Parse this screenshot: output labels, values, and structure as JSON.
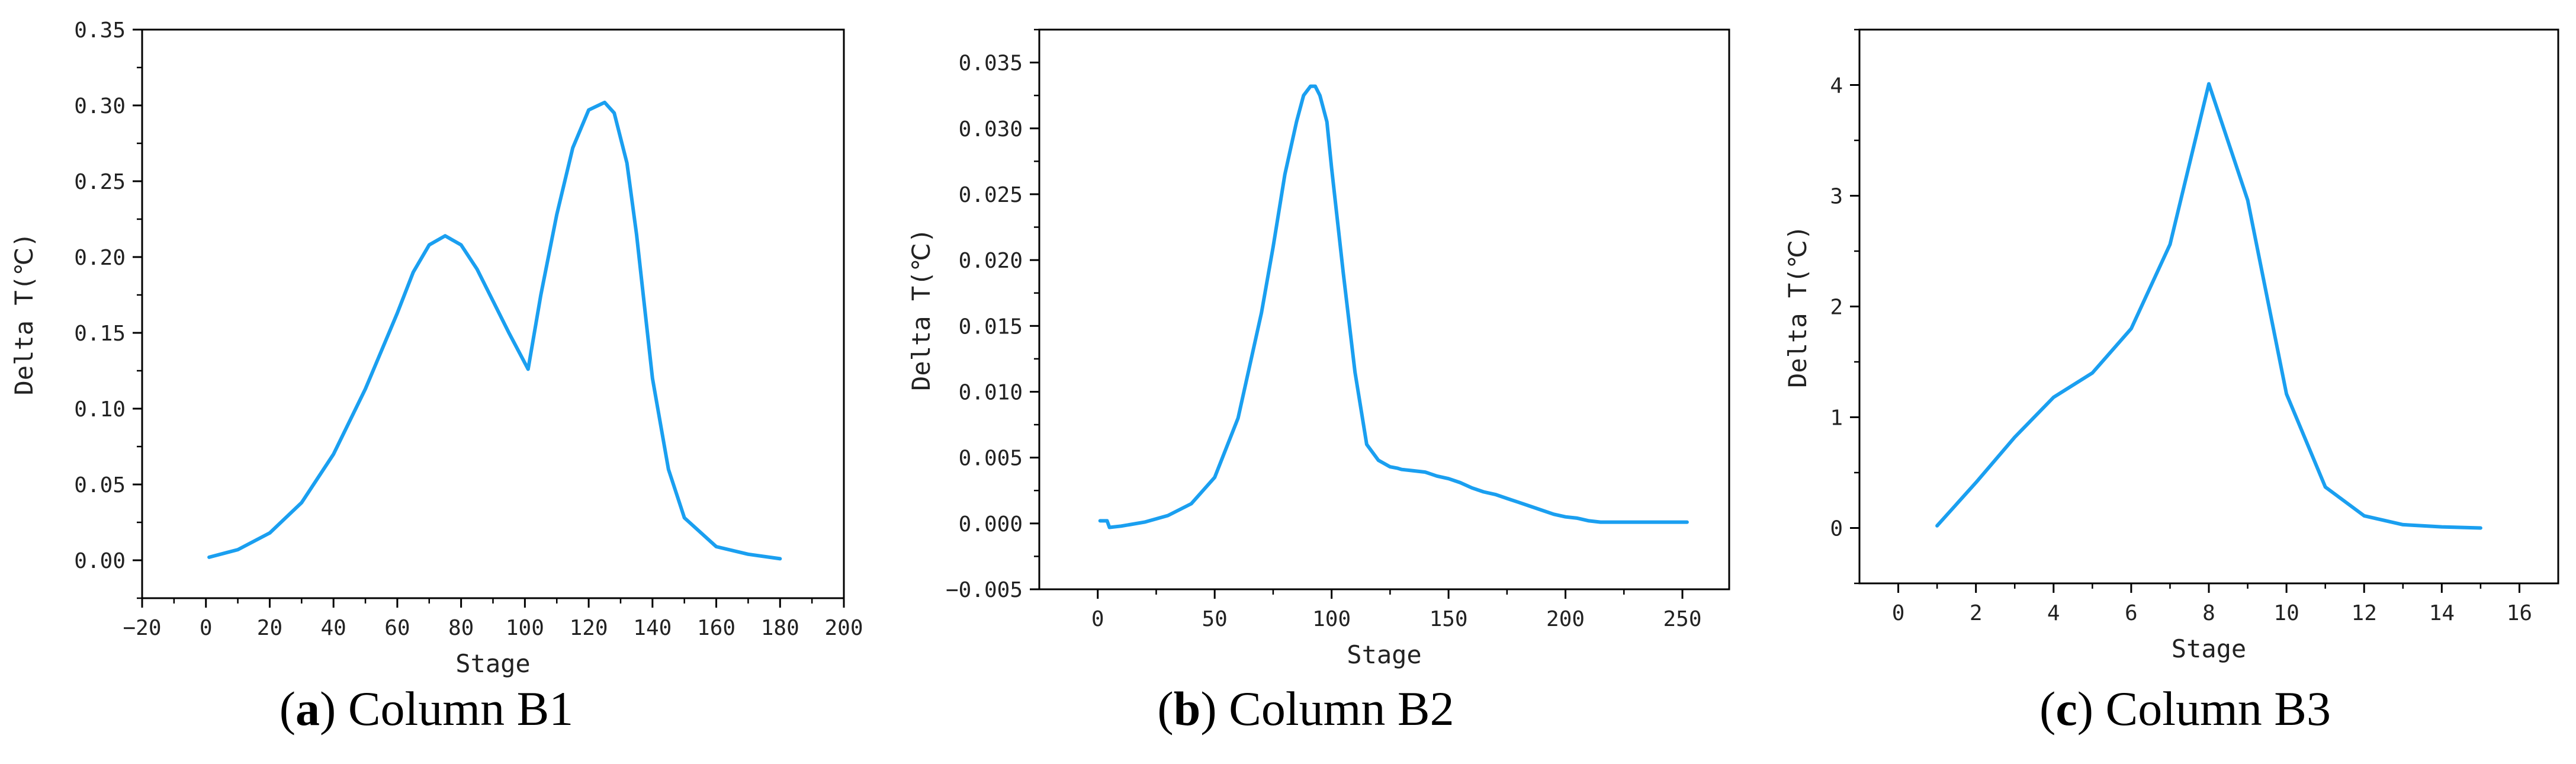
{
  "colors": {
    "line": "#1a9ff0",
    "axis": "#000000"
  },
  "captions": [
    {
      "letter": "a",
      "text": " Column B1"
    },
    {
      "letter": "b",
      "text": " Column B2"
    },
    {
      "letter": "c",
      "text": " Column B3"
    }
  ],
  "chart_data": [
    {
      "type": "line",
      "title": "",
      "xlabel": "Stage",
      "ylabel": "Delta T(℃)",
      "xlim": [
        -20,
        200
      ],
      "ylim": [
        -0.025,
        0.35
      ],
      "xticks": [
        -20,
        0,
        20,
        40,
        60,
        80,
        100,
        120,
        140,
        160,
        180,
        200
      ],
      "xtick_labels": [
        "−20",
        "0",
        "20",
        "40",
        "60",
        "80",
        "100",
        "120",
        "140",
        "160",
        "180",
        "200"
      ],
      "yticks": [
        0.0,
        0.05,
        0.1,
        0.15,
        0.2,
        0.25,
        0.3,
        0.35
      ],
      "ytick_labels": [
        "0.00",
        "0.05",
        "0.10",
        "0.15",
        "0.20",
        "0.25",
        "0.30",
        "0.35"
      ],
      "grid": false,
      "series": [
        {
          "x": [
            1,
            10,
            20,
            30,
            40,
            50,
            60,
            65,
            70,
            75,
            80,
            85,
            90,
            95,
            101,
            105,
            110,
            115,
            120,
            125,
            128,
            132,
            135,
            140,
            145,
            150,
            160,
            170,
            180
          ],
          "y": [
            0.002,
            0.007,
            0.018,
            0.038,
            0.07,
            0.113,
            0.163,
            0.19,
            0.208,
            0.214,
            0.208,
            0.192,
            0.171,
            0.15,
            0.126,
            0.175,
            0.228,
            0.272,
            0.297,
            0.302,
            0.295,
            0.262,
            0.215,
            0.12,
            0.06,
            0.028,
            0.009,
            0.004,
            0.001
          ]
        }
      ]
    },
    {
      "type": "line",
      "title": "",
      "xlabel": "Stage",
      "ylabel": "Delta T(℃)",
      "xlim": [
        -25,
        270
      ],
      "ylim": [
        -0.005,
        0.0375
      ],
      "xticks": [
        0,
        50,
        100,
        150,
        200,
        250
      ],
      "xtick_labels": [
        "0",
        "50",
        "100",
        "150",
        "200",
        "250"
      ],
      "yticks": [
        -0.005,
        0.0,
        0.005,
        0.01,
        0.015,
        0.02,
        0.025,
        0.03,
        0.035
      ],
      "ytick_labels": [
        "−0.005",
        "0.000",
        "0.005",
        "0.010",
        "0.015",
        "0.020",
        "0.025",
        "0.030",
        "0.035"
      ],
      "grid": false,
      "series": [
        {
          "x": [
            1,
            4,
            5,
            10,
            20,
            30,
            40,
            50,
            60,
            70,
            75,
            80,
            85,
            88,
            91,
            93,
            95,
            98,
            100,
            105,
            110,
            115,
            120,
            125,
            128,
            130,
            135,
            140,
            145,
            150,
            155,
            160,
            165,
            170,
            175,
            180,
            185,
            190,
            195,
            200,
            205,
            210,
            215,
            230,
            252
          ],
          "y": [
            0.0002,
            0.0002,
            -0.0003,
            -0.0002,
            0.0001,
            0.0006,
            0.0015,
            0.0035,
            0.008,
            0.016,
            0.021,
            0.0265,
            0.0305,
            0.0325,
            0.0332,
            0.0332,
            0.0325,
            0.0305,
            0.027,
            0.019,
            0.0115,
            0.006,
            0.0048,
            0.0043,
            0.0042,
            0.0041,
            0.004,
            0.0039,
            0.0036,
            0.0034,
            0.0031,
            0.0027,
            0.0024,
            0.0022,
            0.0019,
            0.0016,
            0.0013,
            0.001,
            0.0007,
            0.0005,
            0.0004,
            0.0002,
            0.0001,
            0.0001,
            0.0001
          ]
        }
      ]
    },
    {
      "type": "line",
      "title": "",
      "xlabel": "Stage",
      "ylabel": "Delta T(℃)",
      "xlim": [
        -1,
        17
      ],
      "ylim": [
        -0.5,
        4.5
      ],
      "xticks": [
        0,
        2,
        4,
        6,
        8,
        10,
        12,
        14,
        16
      ],
      "xtick_labels": [
        "0",
        "2",
        "4",
        "6",
        "8",
        "10",
        "12",
        "14",
        "16"
      ],
      "yticks": [
        0,
        1,
        2,
        3,
        4
      ],
      "ytick_labels": [
        "0",
        "1",
        "2",
        "3",
        "4"
      ],
      "grid": false,
      "series": [
        {
          "x": [
            1,
            2,
            3,
            4,
            5,
            6,
            7,
            8,
            9,
            10,
            11,
            12,
            13,
            14,
            15
          ],
          "y": [
            0.02,
            0.41,
            0.82,
            1.18,
            1.4,
            1.8,
            2.56,
            4.01,
            2.96,
            1.21,
            0.37,
            0.11,
            0.03,
            0.01,
            0.0
          ]
        }
      ]
    }
  ]
}
